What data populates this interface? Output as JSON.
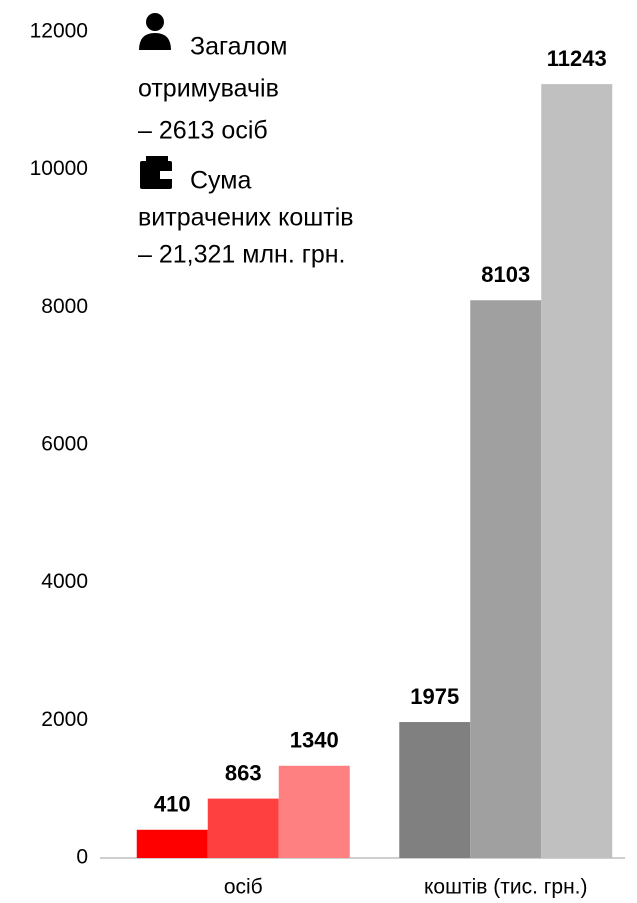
{
  "chart_data": {
    "type": "bar",
    "categories": [
      "осіб",
      "коштів (тис. грн.)"
    ],
    "series": [
      {
        "colors": [
          "#ff0000",
          "#808080"
        ],
        "values": [
          410,
          1975
        ]
      },
      {
        "colors": [
          "#ff4040",
          "#a0a0a0"
        ],
        "values": [
          863,
          8103
        ]
      },
      {
        "colors": [
          "#ff8080",
          "#c0c0c0"
        ],
        "values": [
          1340,
          11243
        ]
      }
    ],
    "ylim": [
      0,
      12000
    ],
    "yticks": [
      0,
      2000,
      4000,
      6000,
      8000,
      10000,
      12000
    ],
    "grid": false,
    "annotations": [
      {
        "lines": [
          "Загалом",
          "отримувачів",
          "– 2613 осіб"
        ]
      },
      {
        "lines": [
          "Сума",
          "витрачених коштів",
          "– 21,321 млн. грн."
        ]
      }
    ]
  }
}
